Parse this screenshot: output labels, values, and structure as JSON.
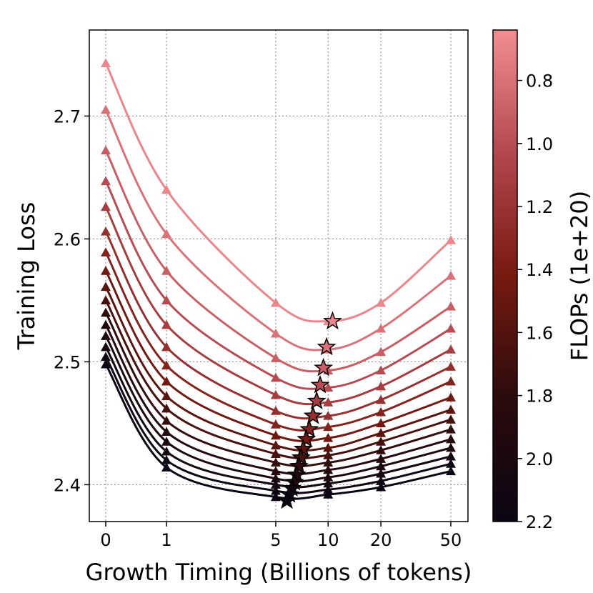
{
  "chart_data": {
    "type": "line",
    "xlabel": "Growth Timing (Billions of tokens)",
    "ylabel": "Training Loss",
    "x_scale": "symlog",
    "x_ticks": [
      0,
      1,
      5,
      10,
      20,
      50
    ],
    "x_tick_labels": [
      "0",
      "1",
      "5",
      "10",
      "20",
      "50"
    ],
    "ylim": [
      2.37,
      2.77
    ],
    "y_ticks": [
      2.4,
      2.5,
      2.6,
      2.7
    ],
    "y_tick_labels": [
      "2.4",
      "2.5",
      "2.6",
      "2.7"
    ],
    "grid": true,
    "colorbar": {
      "label": "FLOPs (1e+20)",
      "range": [
        0.64,
        2.2
      ],
      "ticks": [
        0.8,
        1.0,
        1.2,
        1.4,
        1.6,
        1.8,
        2.0,
        2.2
      ],
      "tick_labels": [
        "0.8",
        "1.0",
        "1.2",
        "1.4",
        "1.6",
        "1.8",
        "2.0",
        "2.2"
      ],
      "colors": [
        "#0b0514",
        "#2a0b0c",
        "#761a10",
        "#b4474f",
        "#f08e94"
      ]
    },
    "marker_x": [
      0,
      1,
      5,
      10,
      20,
      50
    ],
    "series": [
      {
        "flops": 0.68,
        "values": [
          2.743,
          2.64,
          2.548,
          2.533,
          2.548,
          2.599
        ]
      },
      {
        "flops": 0.79,
        "values": [
          2.705,
          2.604,
          2.523,
          2.51,
          2.527,
          2.57
        ]
      },
      {
        "flops": 0.9,
        "values": [
          2.672,
          2.574,
          2.503,
          2.493,
          2.508,
          2.545
        ]
      },
      {
        "flops": 1.01,
        "values": [
          2.647,
          2.55,
          2.487,
          2.479,
          2.493,
          2.527
        ]
      },
      {
        "flops": 1.12,
        "values": [
          2.626,
          2.53,
          2.473,
          2.467,
          2.48,
          2.51
        ]
      },
      {
        "flops": 1.23,
        "values": [
          2.606,
          2.512,
          2.46,
          2.456,
          2.469,
          2.496
        ]
      },
      {
        "flops": 1.34,
        "values": [
          2.589,
          2.497,
          2.449,
          2.447,
          2.459,
          2.484
        ]
      },
      {
        "flops": 1.45,
        "values": [
          2.574,
          2.484,
          2.44,
          2.438,
          2.45,
          2.471
        ]
      },
      {
        "flops": 1.56,
        "values": [
          2.561,
          2.472,
          2.432,
          2.43,
          2.442,
          2.461
        ]
      },
      {
        "flops": 1.67,
        "values": [
          2.55,
          2.462,
          2.425,
          2.424,
          2.435,
          2.453
        ]
      },
      {
        "flops": 1.78,
        "values": [
          2.54,
          2.452,
          2.418,
          2.418,
          2.428,
          2.445
        ]
      },
      {
        "flops": 1.89,
        "values": [
          2.53,
          2.443,
          2.411,
          2.412,
          2.421,
          2.437
        ]
      },
      {
        "flops": 2.0,
        "values": [
          2.521,
          2.435,
          2.405,
          2.406,
          2.415,
          2.43
        ]
      },
      {
        "flops": 2.09,
        "values": [
          2.512,
          2.427,
          2.4,
          2.401,
          2.409,
          2.423
        ]
      },
      {
        "flops": 2.15,
        "values": [
          2.504,
          2.42,
          2.395,
          2.396,
          2.403,
          2.417
        ]
      },
      {
        "flops": 2.2,
        "values": [
          2.498,
          2.414,
          2.39,
          2.392,
          2.398,
          2.411
        ]
      }
    ],
    "optima": {
      "x": [
        10.6,
        9.8,
        9.4,
        9.0,
        8.6,
        8.2,
        7.8,
        7.5,
        7.2,
        7.0,
        6.8,
        6.6,
        6.4,
        6.2,
        6.0,
        5.8
      ],
      "y": [
        2.533,
        2.512,
        2.495,
        2.481,
        2.468,
        2.456,
        2.445,
        2.437,
        2.429,
        2.422,
        2.415,
        2.408,
        2.402,
        2.397,
        2.392,
        2.387
      ]
    }
  }
}
